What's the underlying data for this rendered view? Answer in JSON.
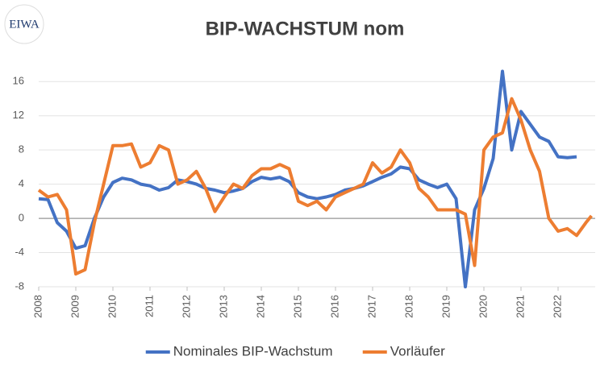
{
  "logo": "EIWA",
  "chart_data": {
    "type": "line",
    "title": "BIP-WACHSTUM nom",
    "xlim": [
      2008,
      2023
    ],
    "xticks": [
      2008,
      2009,
      2010,
      2011,
      2012,
      2013,
      2014,
      2015,
      2016,
      2017,
      2018,
      2019,
      2020,
      2021,
      2022
    ],
    "ylim": [
      -8,
      18
    ],
    "yticks": [
      -8,
      -4,
      0,
      4,
      8,
      12,
      16
    ],
    "grid": true,
    "legend": "bottom",
    "series": [
      {
        "name": "Nominales BIP-Wachstum",
        "color": "#4472c4",
        "x": [
          2008,
          2008.25,
          2008.5,
          2008.75,
          2009,
          2009.25,
          2009.5,
          2009.75,
          2010,
          2010.25,
          2010.5,
          2010.75,
          2011,
          2011.25,
          2011.5,
          2011.75,
          2012,
          2012.25,
          2012.5,
          2012.75,
          2013,
          2013.25,
          2013.5,
          2013.75,
          2014,
          2014.25,
          2014.5,
          2014.75,
          2015,
          2015.25,
          2015.5,
          2015.75,
          2016,
          2016.25,
          2016.5,
          2016.75,
          2017,
          2017.25,
          2017.5,
          2017.75,
          2018,
          2018.25,
          2018.5,
          2018.75,
          2019,
          2019.25,
          2019.5,
          2019.75,
          2020,
          2020.25,
          2020.5,
          2020.75,
          2021,
          2021.25,
          2021.5,
          2021.75,
          2022,
          2022.25,
          2022.5
        ],
        "values": [
          2.3,
          2.2,
          -0.5,
          -1.5,
          -3.5,
          -3.2,
          0,
          2.5,
          4.2,
          4.7,
          4.5,
          4.0,
          3.8,
          3.3,
          3.6,
          4.5,
          4.3,
          4.0,
          3.5,
          3.3,
          3.0,
          3.2,
          3.5,
          4.3,
          4.8,
          4.6,
          4.8,
          4.3,
          3.0,
          2.5,
          2.3,
          2.5,
          2.8,
          3.3,
          3.5,
          3.8,
          4.3,
          4.8,
          5.2,
          6.0,
          5.8,
          4.5,
          4.0,
          3.6,
          4.0,
          2.3,
          -8,
          1.0,
          3.5,
          7,
          17.2,
          8,
          12.5,
          11,
          9.5,
          9,
          7.2,
          7.1,
          7.2
        ]
      },
      {
        "name": "Vorläufer",
        "color": "#ed7d31",
        "x": [
          2008,
          2008.25,
          2008.5,
          2008.75,
          2009,
          2009.25,
          2009.5,
          2009.75,
          2010,
          2010.25,
          2010.5,
          2010.75,
          2011,
          2011.25,
          2011.5,
          2011.75,
          2012,
          2012.25,
          2012.5,
          2012.75,
          2013,
          2013.25,
          2013.5,
          2013.75,
          2014,
          2014.25,
          2014.5,
          2014.75,
          2015,
          2015.25,
          2015.5,
          2015.75,
          2016,
          2016.25,
          2016.5,
          2016.75,
          2017,
          2017.25,
          2017.5,
          2017.75,
          2018,
          2018.25,
          2018.5,
          2018.75,
          2019,
          2019.25,
          2019.5,
          2019.75,
          2020,
          2020.25,
          2020.5,
          2020.75,
          2021,
          2021.25,
          2021.5,
          2021.75,
          2022,
          2022.25,
          2022.5,
          2022.75,
          2022.9
        ],
        "values": [
          3.3,
          2.5,
          2.8,
          1.0,
          -6.5,
          -6.0,
          -0.5,
          4,
          8.5,
          8.5,
          8.7,
          6.0,
          6.5,
          8.5,
          8.0,
          4.0,
          4.5,
          5.5,
          3.5,
          0.8,
          2.5,
          4.0,
          3.5,
          5.0,
          5.8,
          5.8,
          6.3,
          5.8,
          2.0,
          1.5,
          2.0,
          1.0,
          2.5,
          3.0,
          3.5,
          4.0,
          6.5,
          5.3,
          6.0,
          8.0,
          6.5,
          3.5,
          2.5,
          1.0,
          1.0,
          1.0,
          0.5,
          -5.5,
          8.0,
          9.5,
          10.0,
          14.0,
          11.5,
          8.0,
          5.5,
          0,
          -1.5,
          -1.2,
          -2.0,
          -0.5,
          0.3
        ]
      }
    ]
  }
}
